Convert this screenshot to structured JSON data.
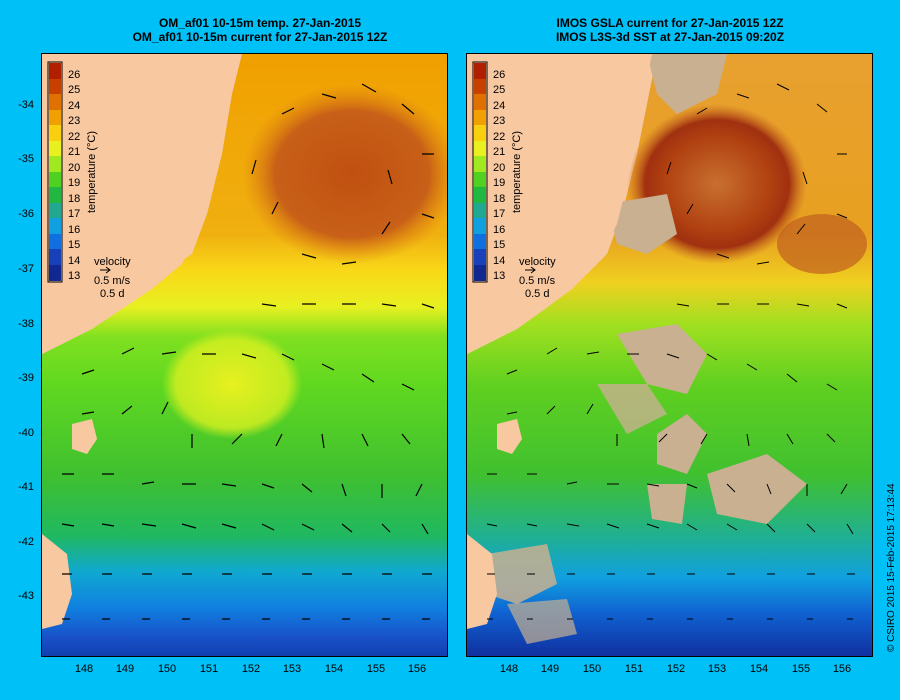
{
  "left_panel": {
    "title_line1": "OM_af01 10-15m temp. 27-Jan-2015",
    "title_line2": "OM_af01 10-15m current for 27-Jan-2015 12Z"
  },
  "right_panel": {
    "title_line1": "IMOS GSLA current for 27-Jan-2015 12Z",
    "title_line2": "IMOS L3S-3d SST at 27-Jan-2015 09:20Z"
  },
  "colorbar": {
    "label": "temperature (°C)",
    "ticks": [
      "26",
      "25",
      "24",
      "23",
      "22",
      "21",
      "20",
      "19",
      "18",
      "17",
      "16",
      "15",
      "14",
      "13"
    ],
    "colors": [
      "#b02000",
      "#c84000",
      "#e07000",
      "#f0a000",
      "#f8d010",
      "#e8f020",
      "#a0e820",
      "#50d020",
      "#20b840",
      "#20a890",
      "#10a0e0",
      "#1070e0",
      "#1840b8",
      "#102890"
    ]
  },
  "velocity_key": {
    "label": "velocity",
    "speed": "0.5 m/s",
    "duration": "0.5 d"
  },
  "axes": {
    "latitude_ticks": [
      "-34",
      "-35",
      "-36",
      "-37",
      "-38",
      "-39",
      "-40",
      "-41",
      "-42",
      "-43"
    ],
    "longitude_ticks": [
      "148",
      "149",
      "150",
      "151",
      "152",
      "153",
      "154",
      "155",
      "156"
    ]
  },
  "footer": {
    "copyright": "© CSIRO 2015   15-Feb-2015 17:13:44"
  }
}
